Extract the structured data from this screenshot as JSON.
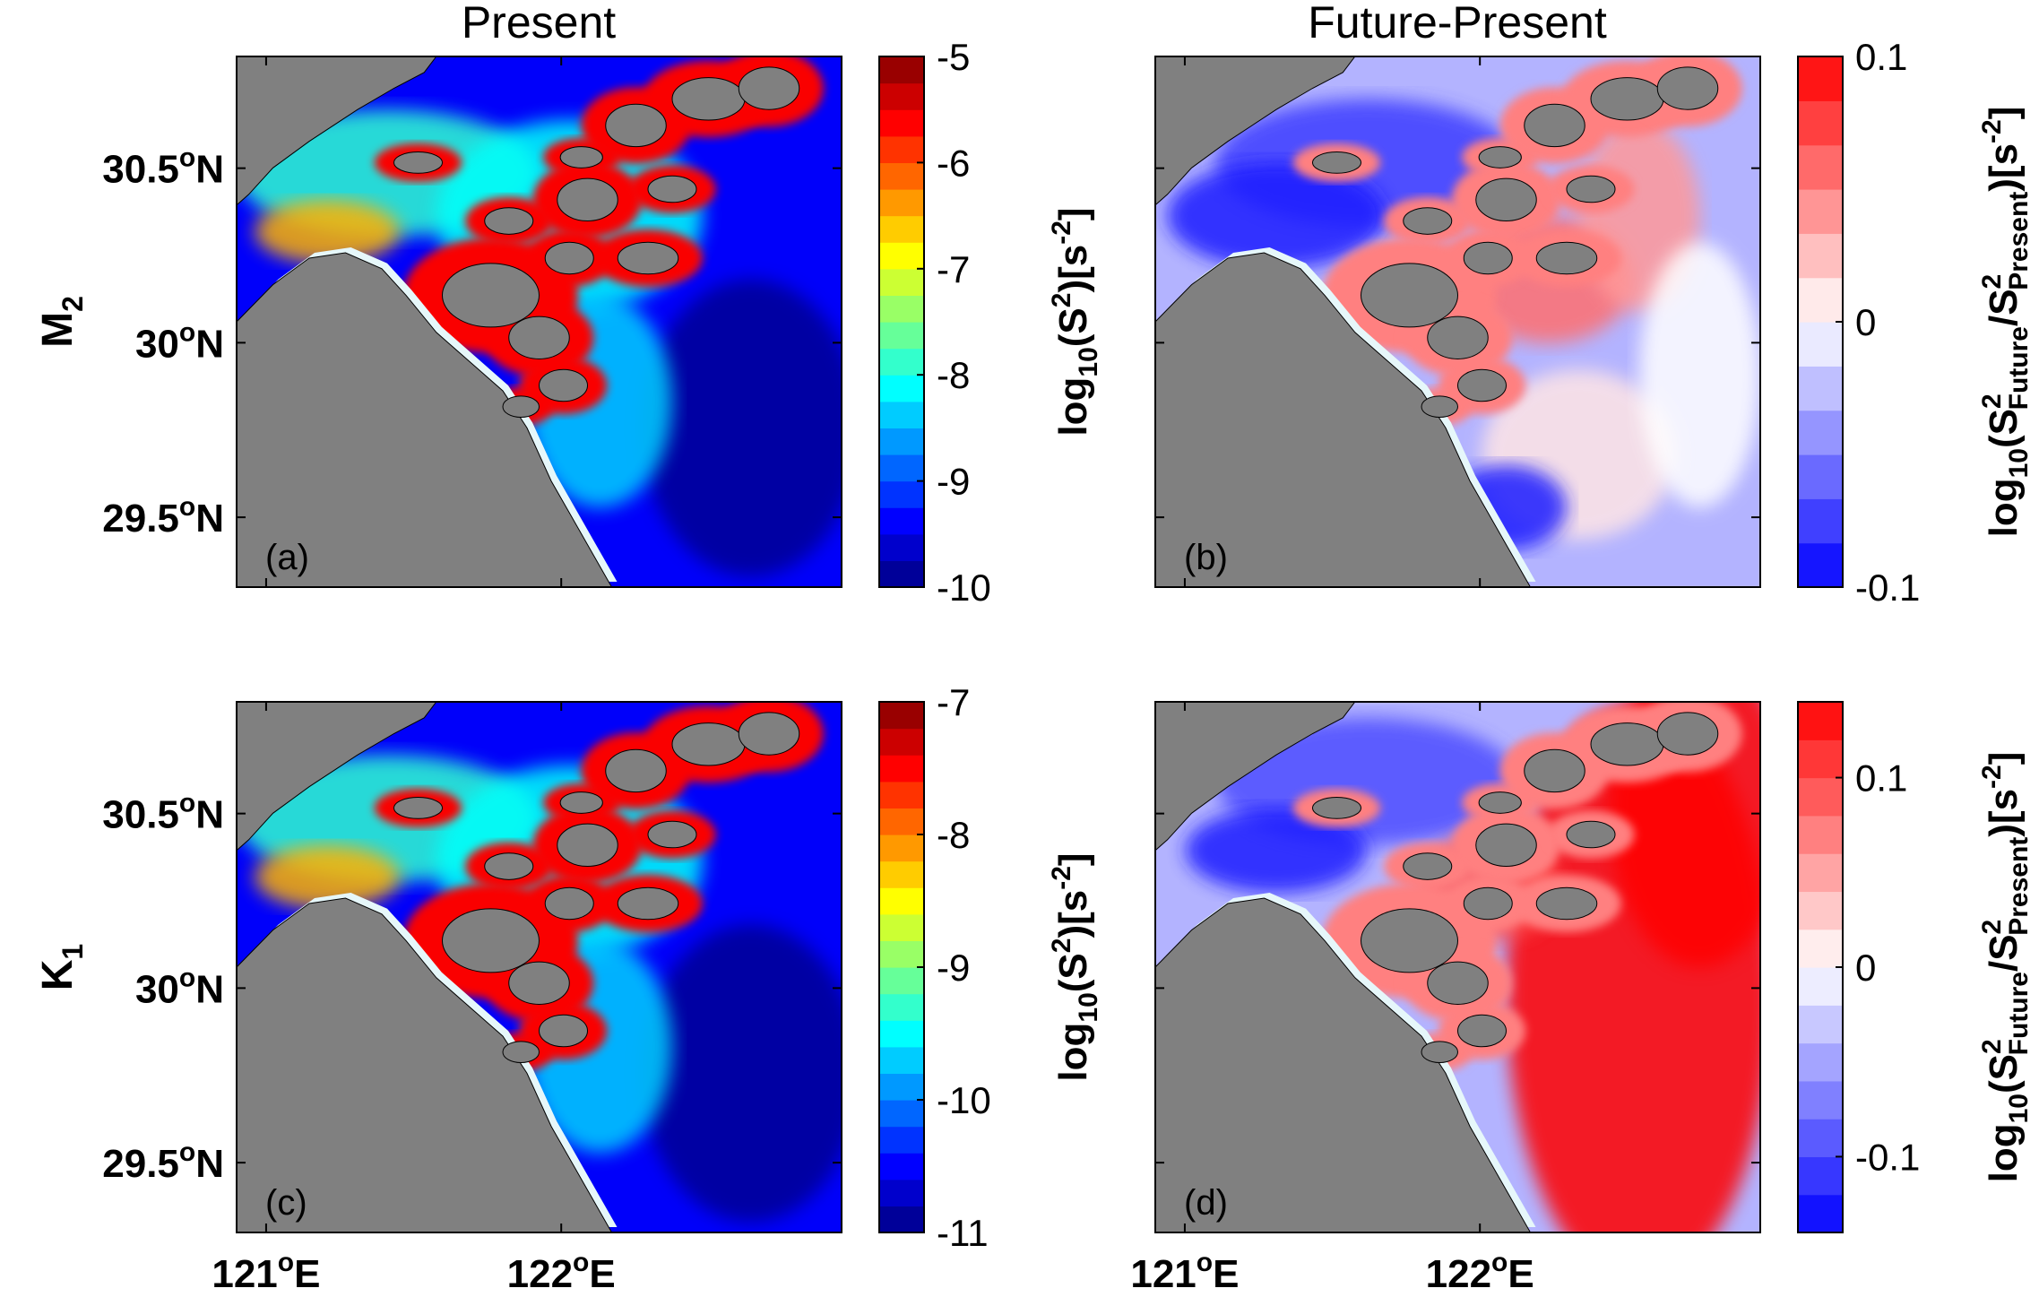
{
  "figure": {
    "column_titles": [
      "Present",
      "Future-Present"
    ],
    "row_labels": [
      {
        "base": "M",
        "sub": "2"
      },
      {
        "base": "K",
        "sub": "1"
      }
    ],
    "lat_ticks": [
      {
        "value": 30.5,
        "label": "30.5",
        "deg": "o",
        "hemi": "N"
      },
      {
        "value": 30.0,
        "label": "30",
        "deg": "o",
        "hemi": "N"
      },
      {
        "value": 29.5,
        "label": "29.5",
        "deg": "o",
        "hemi": "N"
      }
    ],
    "lon_ticks": [
      {
        "value": 121,
        "label": "121",
        "deg": "o",
        "hemi": "E"
      },
      {
        "value": 122,
        "label": "122",
        "deg": "o",
        "hemi": "E"
      }
    ],
    "colorbar_label_present": {
      "a": "log",
      "sub": "10",
      "b": "(S",
      "sup": "2",
      "c": ")[s",
      "sup2": "-2",
      "d": "]"
    },
    "colorbar_label_diff": {
      "a": "log",
      "sub": "10",
      "b": "(S",
      "sup1": "2",
      "sub1": "Future",
      "c": "/S",
      "sup2": "2",
      "sub2": "Present",
      "d": ")[s",
      "sup3": "-2",
      "e": "]"
    },
    "colors": {
      "land": "#808080",
      "shelf": "#e6f7fa",
      "jet_low": "#00008f",
      "jet_high": "#800000",
      "diff_low": "#0000ff",
      "diff_high": "#ff0000"
    }
  },
  "chart_data": [
    {
      "panel_label": "(a)",
      "type": "heatmap",
      "title": "Present",
      "row": "M2",
      "xlim": [
        120.9,
        122.95
      ],
      "ylim": [
        29.3,
        30.82
      ],
      "colorbar": {
        "ticks": [
          "-5",
          "-6",
          "-7",
          "-8",
          "-9",
          "-10"
        ],
        "min": -10,
        "max": -5,
        "levels": 20,
        "colormap": "jet"
      }
    },
    {
      "panel_label": "(b)",
      "type": "heatmap",
      "title": "Future-Present",
      "row": "M2",
      "xlim": [
        120.9,
        122.95
      ],
      "ylim": [
        29.3,
        30.82
      ],
      "colorbar": {
        "ticks": [
          "0.1",
          "0",
          "-0.1"
        ],
        "min": -0.1,
        "max": 0.1,
        "levels": 12,
        "colormap": "blue-white-red"
      }
    },
    {
      "panel_label": "(c)",
      "type": "heatmap",
      "title": "Present",
      "row": "K1",
      "xlim": [
        120.9,
        122.95
      ],
      "ylim": [
        29.3,
        30.82
      ],
      "colorbar": {
        "ticks": [
          "-7",
          "-8",
          "-9",
          "-10",
          "-11"
        ],
        "min": -11,
        "max": -7,
        "levels": 20,
        "colormap": "jet"
      }
    },
    {
      "panel_label": "(d)",
      "type": "heatmap",
      "title": "Future-Present",
      "row": "K1",
      "xlim": [
        120.9,
        122.95
      ],
      "ylim": [
        29.3,
        30.82
      ],
      "colorbar": {
        "ticks": [
          "0.1",
          "0",
          "-0.1"
        ],
        "min": -0.14,
        "max": 0.14,
        "levels": 14,
        "colormap": "blue-white-red"
      }
    }
  ]
}
